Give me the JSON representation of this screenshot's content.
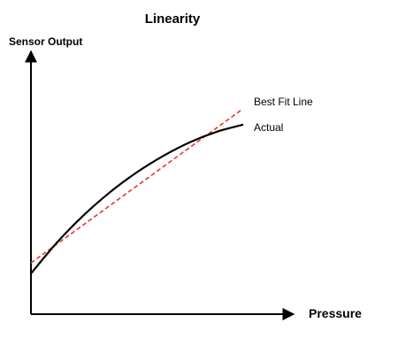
{
  "chart_data": {
    "type": "line",
    "title": "Linearity",
    "xlabel": "Pressure",
    "ylabel": "Sensor Output",
    "xlim": [
      0,
      100
    ],
    "ylim": [
      0,
      100
    ],
    "grid": false,
    "axis_ticks": false,
    "series": [
      {
        "name": "Actual",
        "style": "solid",
        "color": "#000000",
        "x": [
          0,
          10,
          20,
          30,
          40,
          50,
          60,
          70,
          80
        ],
        "y": [
          15.3,
          27.2,
          37.4,
          46.1,
          53.5,
          59.7,
          64.8,
          68.7,
          71.4
        ]
      },
      {
        "name": "Best Fit Line",
        "style": "dashed",
        "color": "#e8362b",
        "x": [
          0,
          79
        ],
        "y": [
          19.3,
          76.7
        ]
      }
    ]
  }
}
